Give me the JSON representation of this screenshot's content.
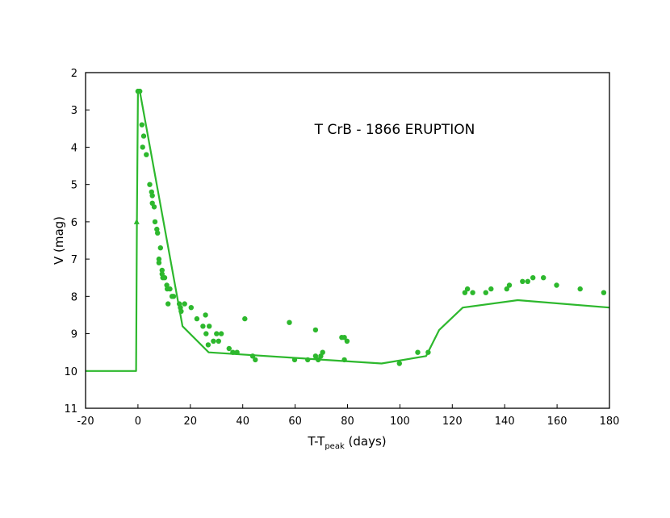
{
  "chart_data": {
    "type": "scatter",
    "title": "T CrB - 1866 ERUPTION",
    "xlabel": {
      "main": "T-T",
      "sub": "peak",
      "suffix": " (days)"
    },
    "ylabel": "V (mag)",
    "xlim": [
      -20,
      180
    ],
    "ylim": [
      2,
      11
    ],
    "y_inverted": true,
    "x_ticks": [
      -20,
      0,
      20,
      40,
      60,
      80,
      100,
      120,
      140,
      160,
      180
    ],
    "y_ticks": [
      2,
      3,
      4,
      5,
      6,
      7,
      8,
      9,
      10,
      11
    ],
    "grid": false,
    "legend": "none",
    "color": "#2db82d",
    "series": [
      {
        "kind": "points",
        "points": [
          [
            0,
            2.5
          ],
          [
            0.7,
            2.5
          ],
          [
            1.5,
            3.4
          ],
          [
            1.8,
            4.0
          ],
          [
            2.2,
            3.7
          ],
          [
            3.2,
            4.2
          ],
          [
            4.5,
            5.0
          ],
          [
            5.2,
            5.2
          ],
          [
            5.5,
            5.3
          ],
          [
            5.5,
            5.5
          ],
          [
            6.2,
            5.6
          ],
          [
            6.5,
            6.0
          ],
          [
            7.2,
            6.2
          ],
          [
            7.5,
            6.3
          ],
          [
            8.0,
            7.0
          ],
          [
            8.0,
            7.1
          ],
          [
            8.6,
            6.7
          ],
          [
            9.2,
            7.3
          ],
          [
            9.2,
            7.4
          ],
          [
            9.5,
            7.5
          ],
          [
            10.2,
            7.5
          ],
          [
            11.0,
            7.7
          ],
          [
            11.2,
            7.8
          ],
          [
            11.5,
            8.2
          ],
          [
            12.2,
            7.8
          ],
          [
            13.0,
            8.0
          ],
          [
            13.6,
            8.0
          ],
          [
            15.8,
            8.2
          ],
          [
            16.2,
            8.3
          ],
          [
            16.5,
            8.4
          ],
          [
            17.8,
            8.2
          ],
          [
            20.3,
            8.3
          ],
          [
            22.5,
            8.6
          ],
          [
            24.8,
            8.8
          ],
          [
            25.8,
            8.5
          ],
          [
            26.0,
            9.0
          ],
          [
            26.8,
            9.3
          ],
          [
            27.2,
            8.8
          ],
          [
            28.8,
            9.2
          ],
          [
            30.0,
            9.0
          ],
          [
            30.8,
            9.2
          ],
          [
            31.8,
            9.0
          ],
          [
            34.8,
            9.4
          ],
          [
            36.2,
            9.5
          ],
          [
            37.8,
            9.5
          ],
          [
            40.8,
            8.6
          ],
          [
            43.8,
            9.6
          ],
          [
            44.8,
            9.7
          ],
          [
            57.8,
            8.7
          ],
          [
            59.8,
            9.7
          ],
          [
            64.8,
            9.7
          ],
          [
            67.8,
            8.9
          ],
          [
            67.8,
            9.6
          ],
          [
            68.8,
            9.7
          ],
          [
            69.8,
            9.6
          ],
          [
            70.5,
            9.5
          ],
          [
            77.8,
            9.1
          ],
          [
            78.8,
            9.1
          ],
          [
            78.8,
            9.7
          ],
          [
            79.8,
            9.2
          ],
          [
            99.8,
            9.8
          ],
          [
            106.8,
            9.5
          ],
          [
            110.8,
            9.5
          ],
          [
            124.8,
            7.9
          ],
          [
            125.8,
            7.8
          ],
          [
            127.8,
            7.9
          ],
          [
            132.8,
            7.9
          ],
          [
            134.8,
            7.8
          ],
          [
            140.8,
            7.8
          ],
          [
            141.8,
            7.7
          ],
          [
            146.8,
            7.6
          ],
          [
            148.8,
            7.6
          ],
          [
            150.8,
            7.5
          ],
          [
            154.8,
            7.5
          ],
          [
            159.8,
            7.7
          ],
          [
            168.8,
            7.8
          ],
          [
            177.8,
            7.9
          ]
        ]
      },
      {
        "kind": "line",
        "points": [
          [
            -20,
            10.0
          ],
          [
            -0.7,
            10.0
          ],
          [
            -0.4,
            6.0
          ],
          [
            0,
            2.5
          ],
          [
            0.7,
            2.5
          ],
          [
            17,
            8.8
          ],
          [
            27,
            9.5
          ],
          [
            93,
            9.8
          ],
          [
            110,
            9.6
          ],
          [
            115,
            8.9
          ],
          [
            124,
            8.3
          ],
          [
            145,
            8.1
          ],
          [
            180,
            8.3
          ]
        ]
      },
      {
        "kind": "triangle-marker",
        "points": [
          [
            -0.5,
            6.0
          ]
        ]
      }
    ]
  }
}
